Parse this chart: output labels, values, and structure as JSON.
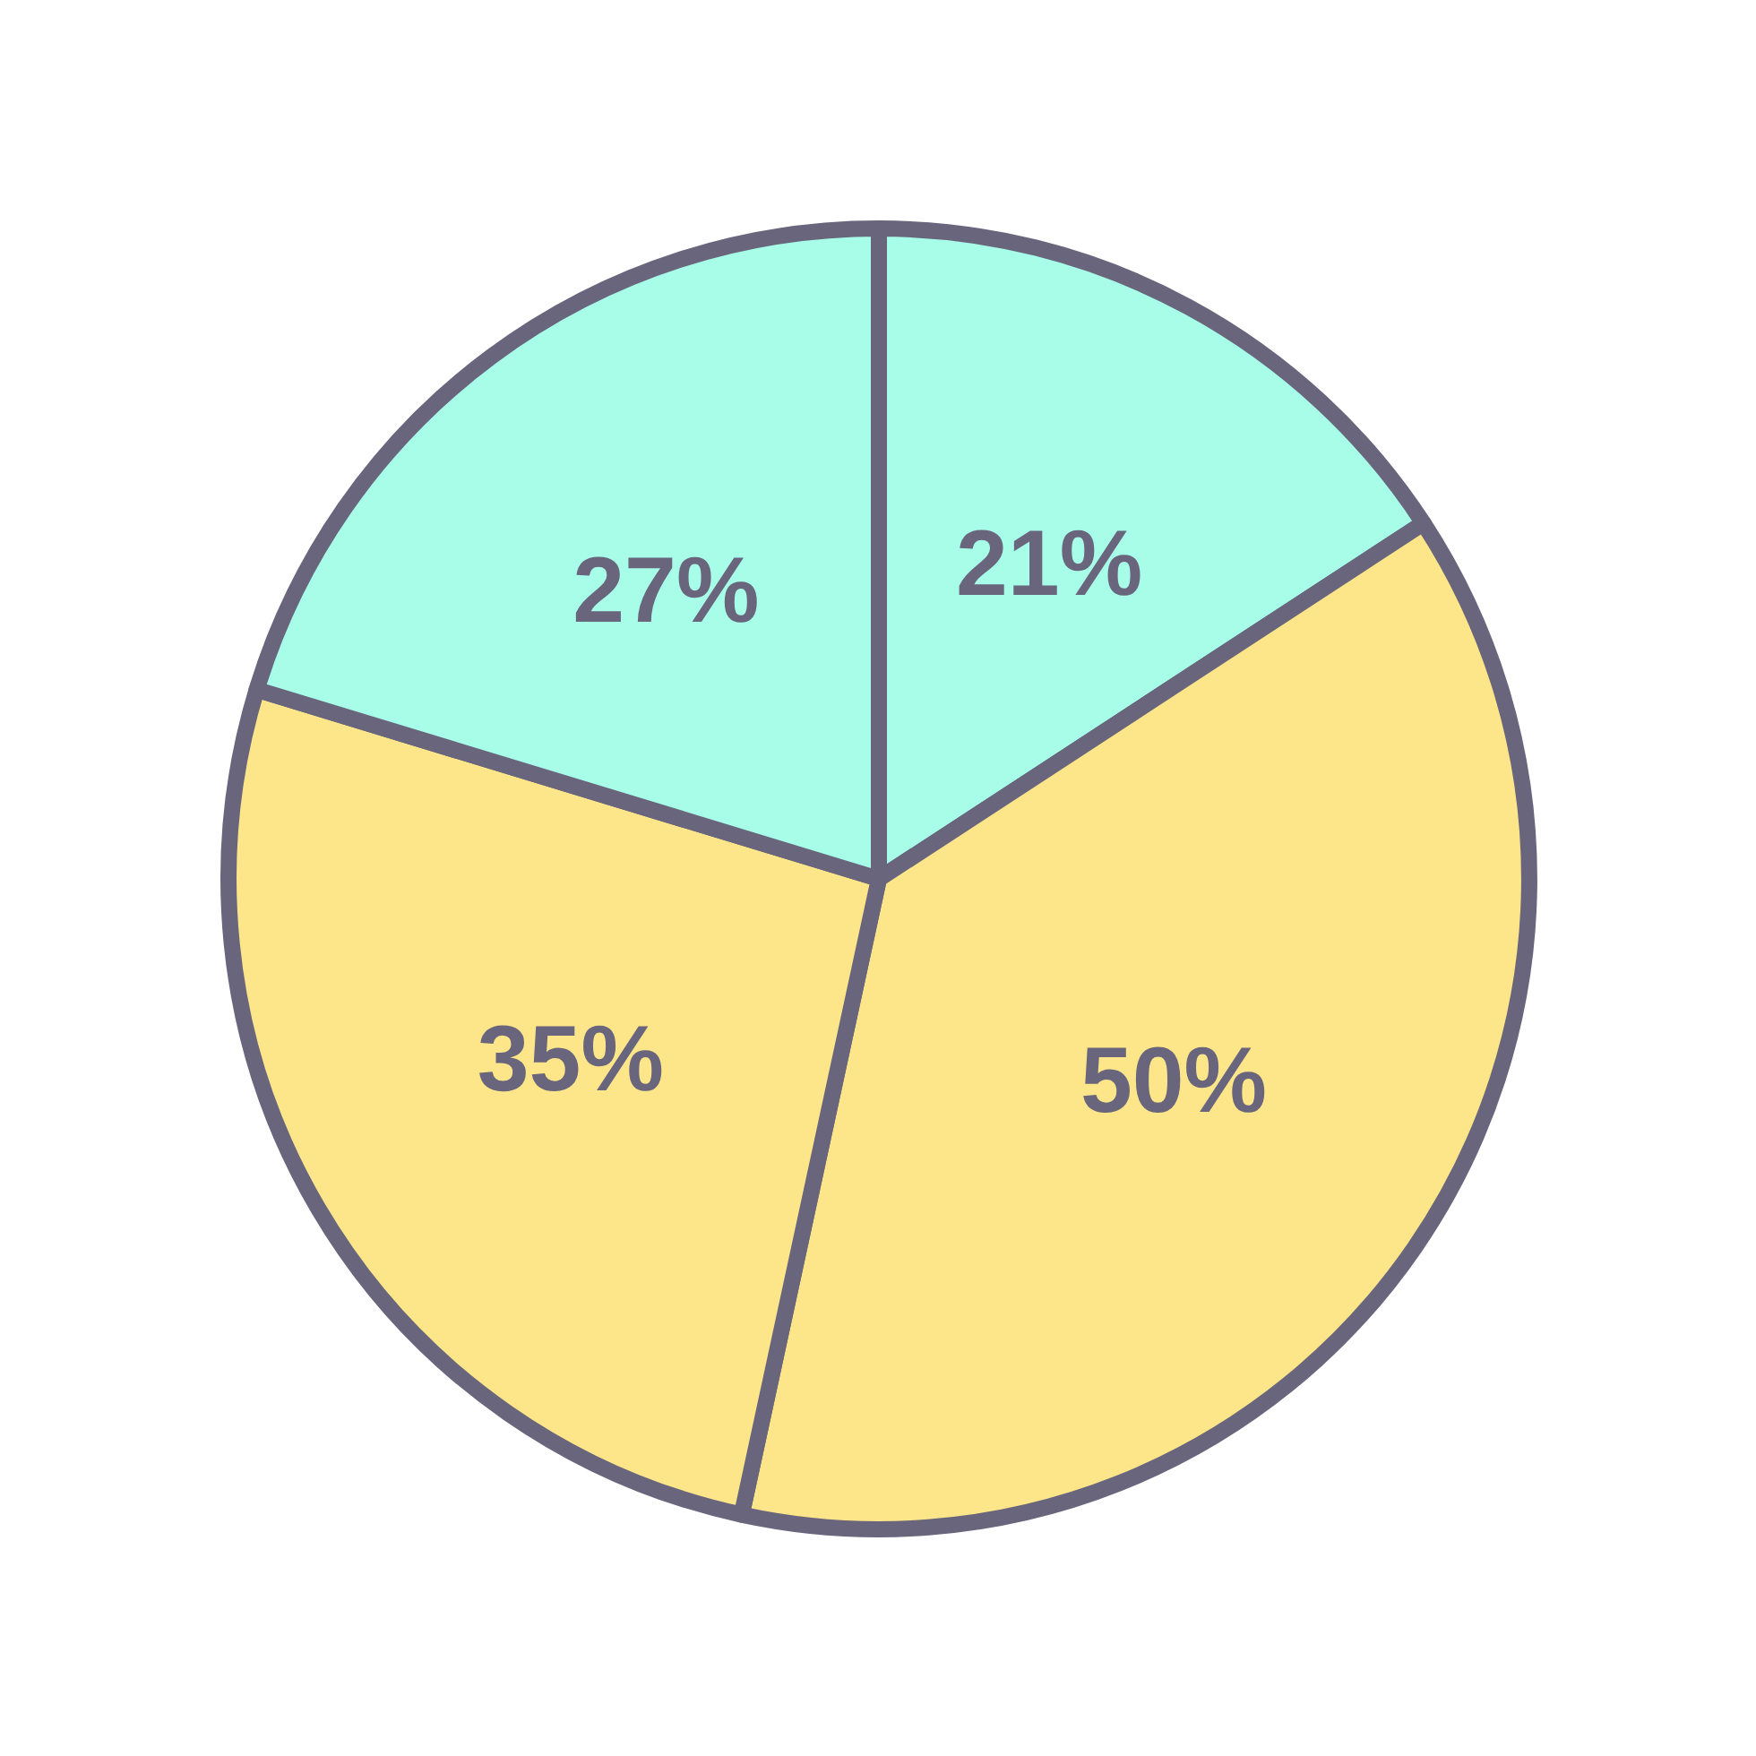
{
  "chart_data": {
    "type": "pie",
    "categories": [
      null,
      null,
      null,
      null
    ],
    "values": [
      21,
      50,
      35,
      27
    ],
    "value_labels": [
      "21%",
      "50%",
      "35%",
      "27%"
    ],
    "colors": [
      "#a8fde8",
      "#fde68a",
      "#fde68a",
      "#a8fde8"
    ]
  }
}
